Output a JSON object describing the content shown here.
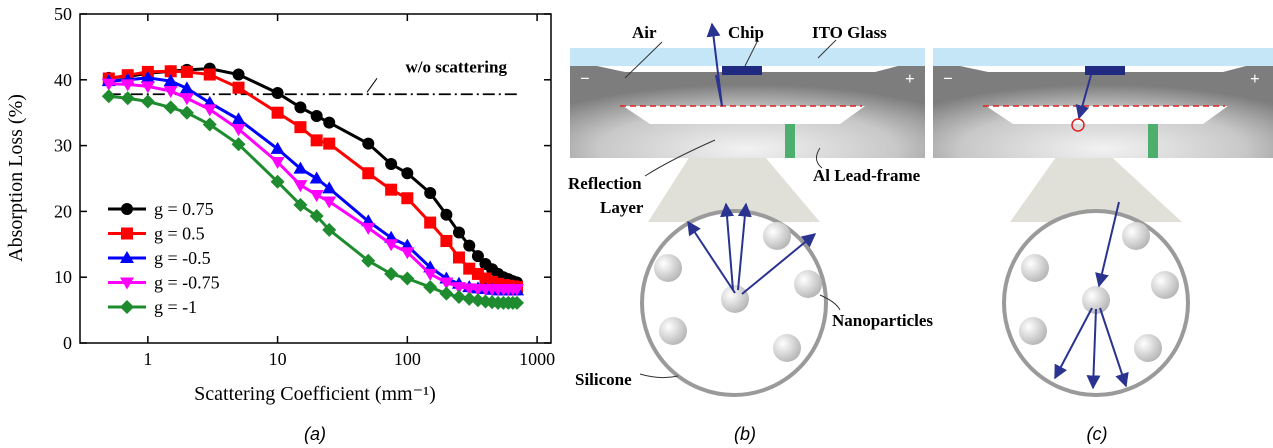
{
  "chart_data": {
    "type": "line",
    "xlabel": "Scattering Coefficient (mm⁻¹)",
    "ylabel": "Absorption Loss (%)",
    "x": [
      0.5,
      0.7,
      1,
      1.5,
      2,
      3,
      5,
      10,
      15,
      20,
      25,
      50,
      75,
      100,
      150,
      200,
      250,
      300,
      350,
      400,
      450,
      500,
      550,
      600,
      650,
      700
    ],
    "series": [
      {
        "name": "g = 0.75",
        "color": "#000000",
        "marker": "circle",
        "values": [
          40.3,
          40.5,
          41,
          41.3,
          41.5,
          41.7,
          40.8,
          38,
          35.8,
          34.5,
          33.5,
          30.3,
          27.2,
          25.8,
          22.8,
          19.5,
          16.8,
          14.8,
          13.2,
          12,
          11.2,
          10.5,
          10,
          9.7,
          9.4,
          9.2
        ]
      },
      {
        "name": "g = 0.5",
        "color": "#ff0000",
        "marker": "square",
        "values": [
          40.2,
          40.7,
          41.2,
          41.3,
          41.2,
          40.8,
          38.8,
          35,
          32.8,
          30.8,
          30.3,
          25.8,
          23.3,
          22,
          18.3,
          15.5,
          13,
          11.3,
          10.5,
          9.8,
          9.3,
          9,
          8.8,
          8.7,
          8.6,
          8.5
        ]
      },
      {
        "name": "g = -0.5",
        "color": "#0000ff",
        "marker": "triangle-up",
        "values": [
          39.8,
          40,
          40.3,
          39.8,
          38.7,
          36.5,
          34,
          29.5,
          26.5,
          25,
          23.5,
          18.5,
          16,
          14.8,
          11.5,
          9.8,
          9,
          8.5,
          8.3,
          8.2,
          8.1,
          8,
          8,
          8,
          8,
          8
        ]
      },
      {
        "name": "g = -0.75",
        "color": "#ff00ff",
        "marker": "triangle-down",
        "values": [
          39.4,
          39.3,
          39,
          38.3,
          37.2,
          35.5,
          32.5,
          27.5,
          24,
          22.5,
          21.5,
          17.5,
          15,
          13.8,
          10.5,
          9.2,
          8.5,
          8.3,
          8.2,
          8.2,
          8.2,
          8.2,
          8.2,
          8.2,
          8.2,
          8.2
        ]
      },
      {
        "name": "g = -1",
        "color": "#1e8c2e",
        "marker": "diamond",
        "values": [
          37.5,
          37.2,
          36.7,
          35.8,
          35,
          33.2,
          30.2,
          24.5,
          21,
          19.3,
          17.2,
          12.5,
          10.5,
          9.8,
          8.5,
          7.5,
          7,
          6.7,
          6.5,
          6.3,
          6.2,
          6.1,
          6.1,
          6.1,
          6.1,
          6.1
        ]
      }
    ],
    "reference_line": {
      "value": 37.8,
      "label": "w/o scattering"
    },
    "xscale": "log",
    "xlim": [
      0.3,
      1280
    ],
    "xticks": [
      1,
      10,
      100,
      1000
    ],
    "ylim": [
      0,
      50
    ],
    "yticks": [
      0,
      10,
      20,
      30,
      40,
      50
    ],
    "legend": "lower left"
  },
  "captions": [
    "(a)",
    "(b)",
    "(c)"
  ],
  "diagram": {
    "air": "Air",
    "chip": "Chip",
    "ito_glass": "ITO Glass",
    "reflection_layer": [
      "Reflection",
      "Layer"
    ],
    "lead_frame": "Al Lead-frame",
    "nanoparticles": "Nanoparticles",
    "silicone": "Silicone",
    "minus": "−",
    "plus": "+"
  }
}
